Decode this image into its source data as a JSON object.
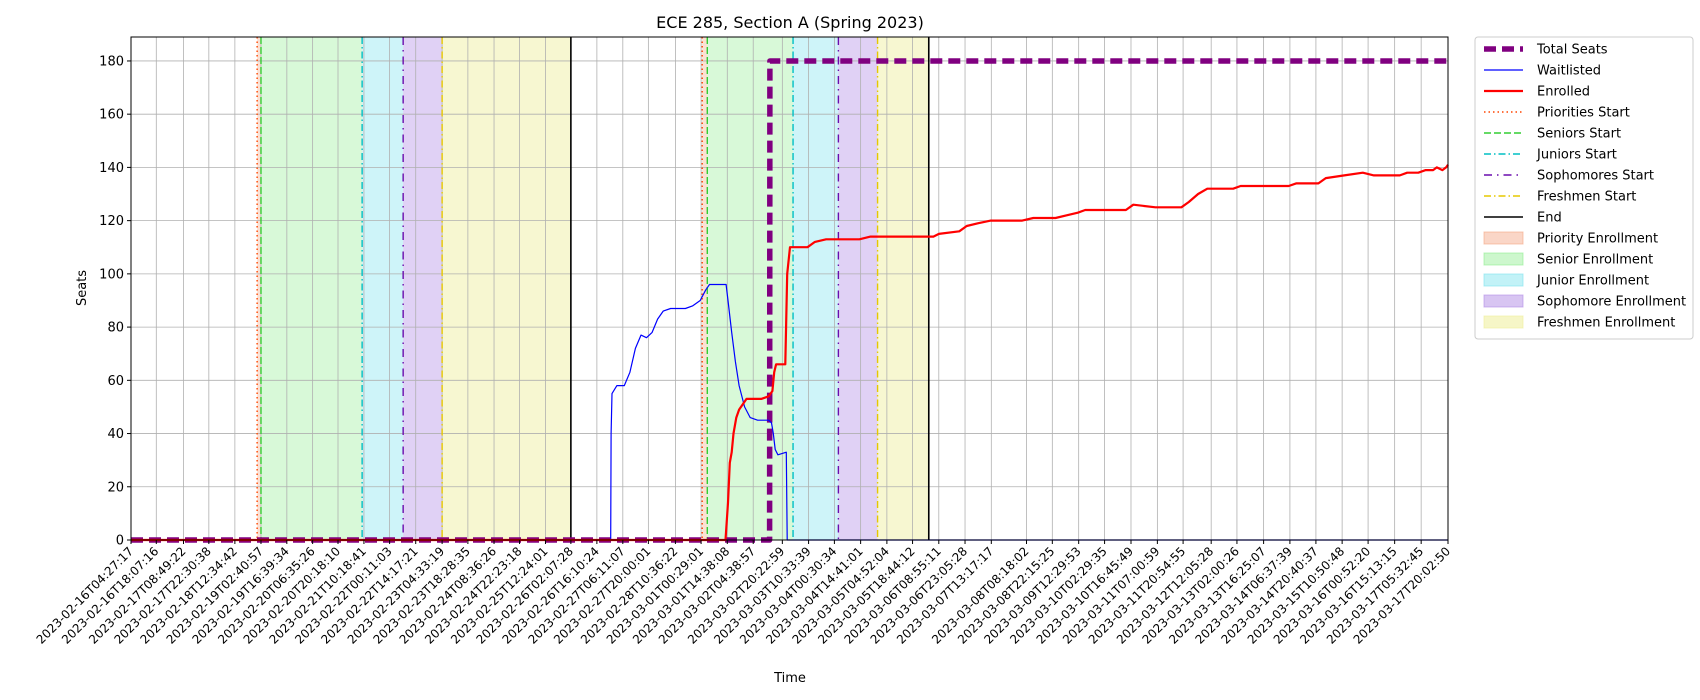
{
  "chart_data": {
    "type": "line",
    "title": "ECE 285, Section A (Spring 2023)",
    "xlabel": "Time",
    "ylabel": "Seats",
    "x_axis": {
      "type": "date",
      "min": "2023-02-16T04:27:17",
      "max": "2023-03-17T20:02:50"
    },
    "ylim": [
      0,
      189
    ],
    "y_ticks": [
      0,
      20,
      40,
      60,
      80,
      100,
      120,
      140,
      160,
      180
    ],
    "x_ticks": [
      "2023-02-16T04:27:17",
      "2023-02-16T18:07:16",
      "2023-02-17T08:49:22",
      "2023-02-17T22:30:38",
      "2023-02-18T12:34:42",
      "2023-02-19T02:40:57",
      "2023-02-19T16:39:34",
      "2023-02-20T06:35:26",
      "2023-02-20T20:18:10",
      "2023-02-21T10:18:41",
      "2023-02-22T00:11:03",
      "2023-02-22T14:17:21",
      "2023-02-23T04:33:19",
      "2023-02-23T18:28:35",
      "2023-02-24T08:36:26",
      "2023-02-24T22:23:18",
      "2023-02-25T12:24:01",
      "2023-02-26T02:07:28",
      "2023-02-26T16:10:24",
      "2023-02-27T06:11:07",
      "2023-02-27T20:00:01",
      "2023-02-28T10:36:22",
      "2023-03-01T00:29:01",
      "2023-03-01T14:38:08",
      "2023-03-02T04:38:57",
      "2023-03-02T20:22:59",
      "2023-03-03T10:33:39",
      "2023-03-04T00:30:34",
      "2023-03-04T14:41:01",
      "2023-03-05T04:52:04",
      "2023-03-05T18:44:12",
      "2023-03-06T08:55:11",
      "2023-03-06T23:05:28",
      "2023-03-07T13:17:17",
      "2023-03-08T08:18:02",
      "2023-03-08T22:15:25",
      "2023-03-09T12:29:53",
      "2023-03-10T02:29:35",
      "2023-03-10T16:45:49",
      "2023-03-11T07:00:59",
      "2023-03-11T20:54:55",
      "2023-03-12T12:05:28",
      "2023-03-13T02:00:26",
      "2023-03-13T16:25:07",
      "2023-03-14T06:37:39",
      "2023-03-14T20:40:37",
      "2023-03-15T10:50:48",
      "2023-03-16T00:52:20",
      "2023-03-16T15:13:15",
      "2023-03-17T05:32:45",
      "2023-03-17T20:02:50"
    ],
    "grid": true,
    "legend_position": "outside-right",
    "series": [
      {
        "name": "Total Seats",
        "color": "#800080",
        "style": "dashed-thick",
        "points": [
          [
            "2023-02-16T04:27:17",
            0
          ],
          [
            "2023-03-02T13:30:00",
            0
          ],
          [
            "2023-03-02T13:40:00",
            180
          ],
          [
            "2023-03-17T20:02:50",
            180
          ]
        ]
      },
      {
        "name": "Waitlisted",
        "color": "#0000ff",
        "style": "solid-thin",
        "points": [
          [
            "2023-02-16T04:27:17",
            0
          ],
          [
            "2023-02-26T23:40:00",
            0
          ],
          [
            "2023-02-26T23:50:00",
            40
          ],
          [
            "2023-02-27T00:20:00",
            55
          ],
          [
            "2023-02-27T03:00:00",
            58
          ],
          [
            "2023-02-27T07:00:00",
            58
          ],
          [
            "2023-02-27T10:00:00",
            63
          ],
          [
            "2023-02-27T13:00:00",
            72
          ],
          [
            "2023-02-27T16:00:00",
            77
          ],
          [
            "2023-02-27T19:00:00",
            76
          ],
          [
            "2023-02-27T22:00:00",
            78
          ],
          [
            "2023-02-28T01:00:00",
            83
          ],
          [
            "2023-02-28T04:00:00",
            86
          ],
          [
            "2023-02-28T08:00:00",
            87
          ],
          [
            "2023-02-28T16:00:00",
            87
          ],
          [
            "2023-02-28T20:00:00",
            88
          ],
          [
            "2023-03-01T00:00:00",
            90
          ],
          [
            "2023-03-01T03:00:00",
            94
          ],
          [
            "2023-03-01T05:00:00",
            96
          ],
          [
            "2023-03-01T14:00:00",
            96
          ],
          [
            "2023-03-01T15:00:00",
            90
          ],
          [
            "2023-03-01T17:00:00",
            78
          ],
          [
            "2023-03-01T19:00:00",
            67
          ],
          [
            "2023-03-01T21:00:00",
            58
          ],
          [
            "2023-03-02T00:00:00",
            50
          ],
          [
            "2023-03-02T03:00:00",
            46
          ],
          [
            "2023-03-02T07:00:00",
            45
          ],
          [
            "2023-03-02T13:00:00",
            45
          ],
          [
            "2023-03-02T14:30:00",
            44
          ],
          [
            "2023-03-02T15:30:00",
            40
          ],
          [
            "2023-03-02T16:30:00",
            34
          ],
          [
            "2023-03-02T18:00:00",
            32
          ],
          [
            "2023-03-02T22:30:00",
            33
          ],
          [
            "2023-03-02T23:00:00",
            0
          ],
          [
            "2023-03-17T20:02:50",
            0
          ]
        ]
      },
      {
        "name": "Enrolled",
        "color": "#ff0000",
        "style": "solid-thick",
        "points": [
          [
            "2023-02-16T04:27:17",
            0
          ],
          [
            "2023-03-01T13:40:00",
            0
          ],
          [
            "2023-03-01T15:00:00",
            14
          ],
          [
            "2023-03-01T16:00:00",
            29
          ],
          [
            "2023-03-01T17:00:00",
            33
          ],
          [
            "2023-03-01T18:00:00",
            40
          ],
          [
            "2023-03-01T19:30:00",
            46
          ],
          [
            "2023-03-01T21:00:00",
            49
          ],
          [
            "2023-03-01T23:00:00",
            51
          ],
          [
            "2023-03-02T01:00:00",
            53
          ],
          [
            "2023-03-02T09:00:00",
            53
          ],
          [
            "2023-03-02T13:00:00",
            54
          ],
          [
            "2023-03-02T15:00:00",
            56
          ],
          [
            "2023-03-02T16:00:00",
            63
          ],
          [
            "2023-03-02T17:00:00",
            66
          ],
          [
            "2023-03-02T22:00:00",
            66
          ],
          [
            "2023-03-02T23:00:00",
            100
          ],
          [
            "2023-03-03T00:30:00",
            110
          ],
          [
            "2023-03-03T10:00:00",
            110
          ],
          [
            "2023-03-03T14:00:00",
            112
          ],
          [
            "2023-03-03T20:00:00",
            113
          ],
          [
            "2023-03-04T14:00:00",
            113
          ],
          [
            "2023-03-04T20:00:00",
            114
          ],
          [
            "2023-03-06T06:00:00",
            114
          ],
          [
            "2023-03-06T09:00:00",
            115
          ],
          [
            "2023-03-06T20:00:00",
            116
          ],
          [
            "2023-03-07T00:00:00",
            118
          ],
          [
            "2023-03-07T06:00:00",
            119
          ],
          [
            "2023-03-07T13:00:00",
            120
          ],
          [
            "2023-03-08T06:00:00",
            120
          ],
          [
            "2023-03-08T12:00:00",
            121
          ],
          [
            "2023-03-09T00:00:00",
            121
          ],
          [
            "2023-03-09T06:00:00",
            122
          ],
          [
            "2023-03-09T12:00:00",
            123
          ],
          [
            "2023-03-09T16:00:00",
            124
          ],
          [
            "2023-03-10T14:00:00",
            124
          ],
          [
            "2023-03-10T18:00:00",
            126
          ],
          [
            "2023-03-11T06:00:00",
            125
          ],
          [
            "2023-03-11T20:00:00",
            125
          ],
          [
            "2023-03-12T00:00:00",
            127
          ],
          [
            "2023-03-12T05:00:00",
            130
          ],
          [
            "2023-03-12T10:00:00",
            132
          ],
          [
            "2023-03-13T00:00:00",
            132
          ],
          [
            "2023-03-13T04:00:00",
            133
          ],
          [
            "2023-03-14T06:00:00",
            133
          ],
          [
            "2023-03-14T10:00:00",
            134
          ],
          [
            "2023-03-14T22:00:00",
            134
          ],
          [
            "2023-03-15T02:00:00",
            136
          ],
          [
            "2023-03-15T12:00:00",
            137
          ],
          [
            "2023-03-15T22:00:00",
            138
          ],
          [
            "2023-03-16T04:00:00",
            137
          ],
          [
            "2023-03-16T18:00:00",
            137
          ],
          [
            "2023-03-16T22:00:00",
            138
          ],
          [
            "2023-03-17T04:00:00",
            138
          ],
          [
            "2023-03-17T08:00:00",
            139
          ],
          [
            "2023-03-17T12:00:00",
            139
          ],
          [
            "2023-03-17T14:00:00",
            140
          ],
          [
            "2023-03-17T17:00:00",
            139
          ],
          [
            "2023-03-17T19:00:00",
            140
          ],
          [
            "2023-03-17T20:02:50",
            141
          ]
        ]
      }
    ],
    "markers": [
      {
        "name": "Priorities Start",
        "color": "#ff4500",
        "style": "dotted",
        "x": [
          "2023-02-19T00:36:00",
          "2023-03-01T01:05:00"
        ]
      },
      {
        "name": "Seniors Start",
        "color": "#32cd32",
        "style": "dashed",
        "x": [
          "2023-02-19T02:40:57",
          "2023-03-01T03:50:00"
        ]
      },
      {
        "name": "Juniors Start",
        "color": "#00bfc4",
        "style": "dashdot",
        "x": [
          "2023-02-21T09:20:00",
          "2023-03-03T02:10:00"
        ]
      },
      {
        "name": "Sophomores Start",
        "color": "#6a0dad",
        "style": "dashdot-sparse",
        "x": [
          "2023-02-22T07:30:00",
          "2023-03-04T02:40:00"
        ]
      },
      {
        "name": "Freshmen Start",
        "color": "#e6c800",
        "style": "dashdot",
        "x": [
          "2023-02-23T04:33:19",
          "2023-03-04T23:50:00"
        ]
      },
      {
        "name": "End",
        "color": "#000000",
        "style": "solid",
        "x": [
          "2023-02-26T02:07:28",
          "2023-03-06T03:30:00"
        ]
      }
    ],
    "spans": [
      {
        "name": "Priority Enrollment",
        "color": "#f4a582",
        "opacity": 0.35,
        "ranges": [
          [
            "2023-02-19T00:36:00",
            "2023-02-19T02:40:57"
          ],
          [
            "2023-03-01T01:05:00",
            "2023-03-01T03:50:00"
          ]
        ]
      },
      {
        "name": "Senior Enrollment",
        "color": "#90ee90",
        "opacity": 0.35,
        "ranges": [
          [
            "2023-02-19T02:40:57",
            "2023-02-21T09:20:00"
          ],
          [
            "2023-03-01T03:50:00",
            "2023-03-03T02:10:00"
          ]
        ]
      },
      {
        "name": "Junior Enrollment",
        "color": "#7fe3ee",
        "opacity": 0.38,
        "ranges": [
          [
            "2023-02-21T09:20:00",
            "2023-02-22T07:30:00"
          ],
          [
            "2023-03-03T02:10:00",
            "2023-03-04T02:40:00"
          ]
        ]
      },
      {
        "name": "Sophomore Enrollment",
        "color": "#b28be6",
        "opacity": 0.4,
        "ranges": [
          [
            "2023-02-22T07:30:00",
            "2023-02-23T04:33:19"
          ],
          [
            "2023-03-04T02:40:00",
            "2023-03-04T23:50:00"
          ]
        ]
      },
      {
        "name": "Freshmen Enrollment",
        "color": "#eeee99",
        "opacity": 0.45,
        "ranges": [
          [
            "2023-02-23T04:33:19",
            "2023-02-26T02:07:28"
          ],
          [
            "2023-03-04T23:50:00",
            "2023-03-06T03:30:00"
          ]
        ]
      }
    ]
  }
}
